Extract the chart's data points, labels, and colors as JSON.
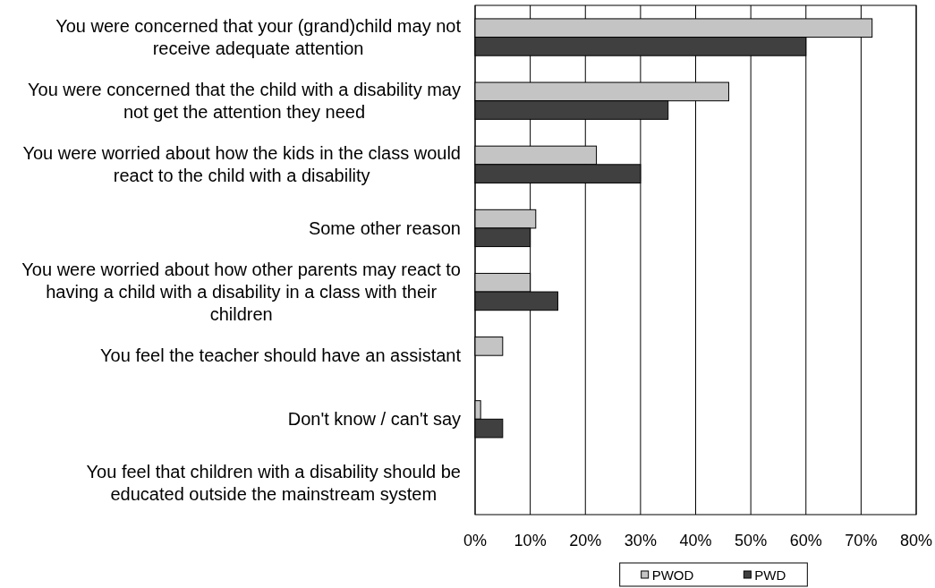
{
  "chart_data": {
    "type": "bar",
    "orientation": "horizontal",
    "categories": [
      "You were concerned that your (grand)child may not receive adequate attention",
      "You were concerned that the child with a disability may not get the attention they need",
      "You were worried about how the kids in the class would react to the child with a disability",
      "Some other reason",
      "You were worried about how other parents may react to having a child with a disability in a class with their children",
      "You feel the teacher should have an assistant",
      "Don't know / can't say",
      "You feel that children with a disability should be educated outside the mainstream system"
    ],
    "series": [
      {
        "name": "PWOD",
        "color": "#c4c4c4",
        "values": [
          72,
          46,
          22,
          11,
          10,
          5,
          1,
          0
        ]
      },
      {
        "name": "PWD",
        "color": "#404040",
        "values": [
          60,
          35,
          30,
          10,
          15,
          0,
          5,
          0
        ]
      }
    ],
    "xlim": [
      0,
      80
    ],
    "xticks": [
      {
        "value": 0,
        "label": "0%"
      },
      {
        "value": 10,
        "label": "10%"
      },
      {
        "value": 20,
        "label": "20%"
      },
      {
        "value": 30,
        "label": "30%"
      },
      {
        "value": 40,
        "label": "40%"
      },
      {
        "value": 50,
        "label": "50%"
      },
      {
        "value": 60,
        "label": "60%"
      },
      {
        "value": 70,
        "label": "70%"
      },
      {
        "value": 80,
        "label": "80%"
      }
    ],
    "grid": "x",
    "legend": "bottom"
  }
}
